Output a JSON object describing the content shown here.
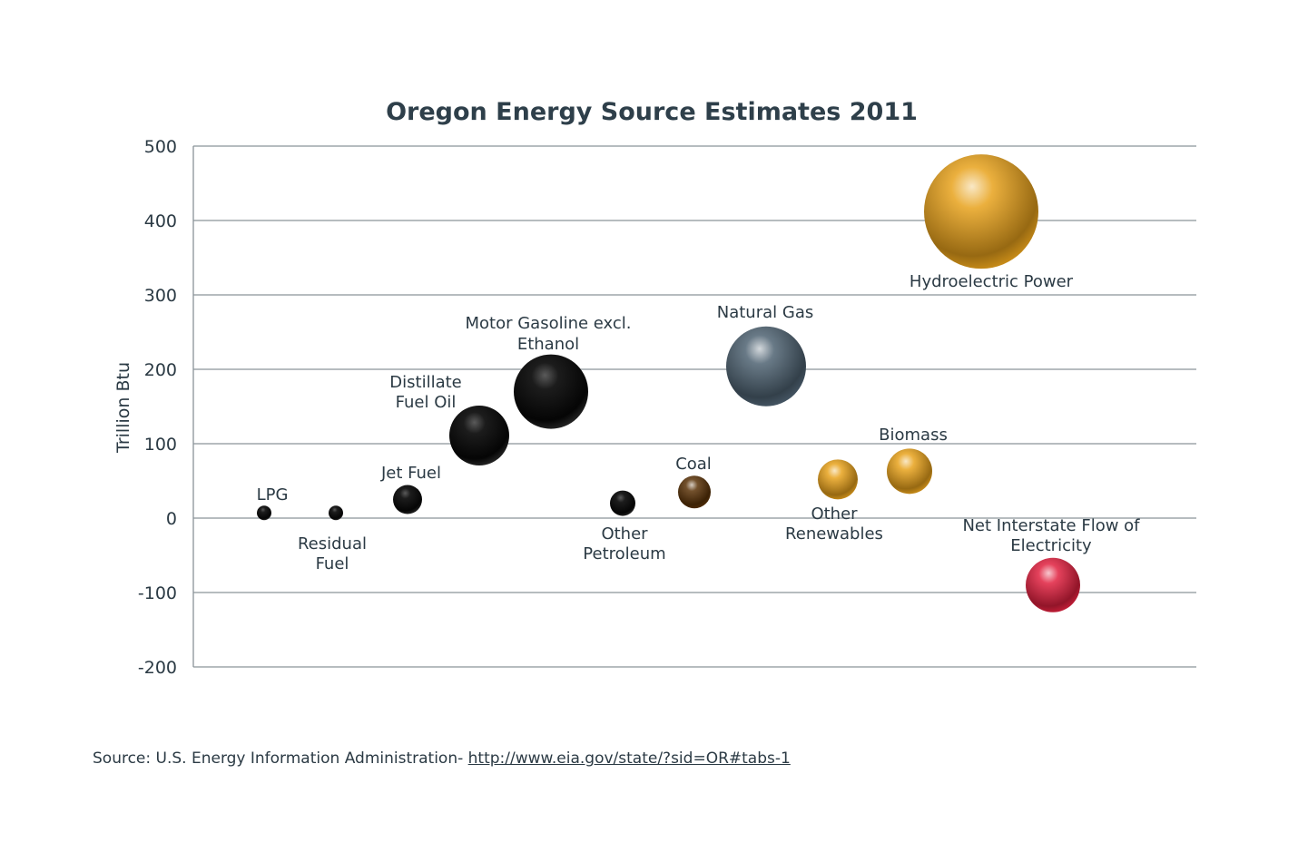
{
  "chart_data": {
    "type": "scatter",
    "title": "Oregon Energy Source Estimates 2011",
    "ylabel": "Trillion Btu",
    "xlabel": "",
    "ylim": [
      -200,
      500
    ],
    "yticks": [
      500,
      400,
      300,
      200,
      100,
      0,
      -100,
      -200
    ],
    "grid": true,
    "points": [
      {
        "label": [
          "LPG"
        ],
        "value": 7,
        "color": "#111111"
      },
      {
        "label": [
          "Residual",
          "Fuel"
        ],
        "value": 7,
        "color": "#111111"
      },
      {
        "label": [
          "Jet Fuel"
        ],
        "value": 25,
        "color": "#111111"
      },
      {
        "label": [
          "Distillate",
          "Fuel Oil"
        ],
        "value": 111,
        "color": "#111111"
      },
      {
        "label": [
          "Motor Gasoline excl.",
          "Ethanol"
        ],
        "value": 170,
        "color": "#111111"
      },
      {
        "label": [
          "Other",
          "Petroleum"
        ],
        "value": 20,
        "color": "#111111"
      },
      {
        "label": [
          "Coal"
        ],
        "value": 35,
        "color": "#5a3208"
      },
      {
        "label": [
          "Natural Gas"
        ],
        "value": 204,
        "color": "#4f6272"
      },
      {
        "label": [
          "Other",
          "Renewables"
        ],
        "value": 52,
        "color": "#e8a21c"
      },
      {
        "label": [
          "Biomass"
        ],
        "value": 63,
        "color": "#e8a21c"
      },
      {
        "label": [
          "Hydroelectric Power"
        ],
        "value": 412,
        "color": "#e8a21c"
      },
      {
        "label": [
          "Net Interstate Flow of",
          "Electricity"
        ],
        "value": -90,
        "color": "#e0213f"
      }
    ]
  },
  "source": {
    "prefix": "Source: U.S. Energy Information Administration- ",
    "link_text": "http://www.eia.gov/state/?sid=OR#tabs-1"
  }
}
